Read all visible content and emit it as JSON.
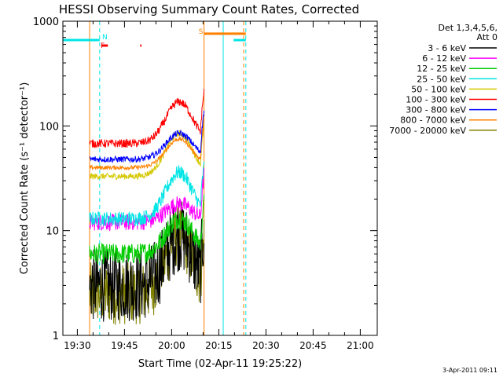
{
  "chart_data": {
    "type": "line",
    "title": "HESSI Observing Summary Count Rates, Corrected",
    "xlabel": "Start Time (02-Apr-11 19:25:22)",
    "ylabel": "Corrected Count Rate (s⁻¹ detector⁻¹)",
    "ylog": true,
    "ylim": [
      1,
      1000
    ],
    "xlim_minutes": [
      0,
      100
    ],
    "x_ticks": [
      {
        "label": "19:30",
        "t": 4.6
      },
      {
        "label": "19:45",
        "t": 19.6
      },
      {
        "label": "20:00",
        "t": 34.6
      },
      {
        "label": "20:15",
        "t": 49.6
      },
      {
        "label": "20:30",
        "t": 64.6
      },
      {
        "label": "20:45",
        "t": 79.6
      },
      {
        "label": "21:00",
        "t": 94.6
      }
    ],
    "y_ticks": [
      {
        "label": "1",
        "v": 1
      },
      {
        "label": "10",
        "v": 10
      },
      {
        "label": "100",
        "v": 100
      },
      {
        "label": "1000",
        "v": 1000
      }
    ],
    "legend": {
      "header1": "Det 1,3,4,5,6,",
      "header2": "Att 0",
      "placement": "right"
    },
    "series": [
      {
        "name": "3 - 6 keV",
        "color": "#000000",
        "base": 3.0,
        "peak": 9,
        "noise": 0.35
      },
      {
        "name": "6 - 12 keV",
        "color": "#ff00ff",
        "base": 12,
        "peak": 18,
        "noise": 0.08
      },
      {
        "name": "12 - 25 keV",
        "color": "#00cc00",
        "base": 6,
        "peak": 13,
        "noise": 0.1
      },
      {
        "name": "25 - 50 keV",
        "color": "#00e5e5",
        "base": 13,
        "peak": 36,
        "noise": 0.07
      },
      {
        "name": "50 - 100 keV",
        "color": "#d4c800",
        "base": 33,
        "peak": 85,
        "noise": 0.03
      },
      {
        "name": "100 - 300 keV",
        "color": "#ff0000",
        "base": 68,
        "peak": 170,
        "noise": 0.04
      },
      {
        "name": "300 - 800 keV",
        "color": "#0000ff",
        "base": 48,
        "peak": 85,
        "noise": 0.03
      },
      {
        "name": "800 - 7000 keV",
        "color": "#ff8000",
        "base": 40,
        "peak": 75,
        "noise": 0.02
      },
      {
        "name": "7000 - 20000 keV",
        "color": "#808000",
        "base": 2.5,
        "peak": 9,
        "noise": 0.3
      }
    ],
    "data_window_minutes": [
      8.5,
      44.9
    ],
    "annotations": [
      {
        "label": "N",
        "t": 12.0,
        "color": "#00e5e5"
      },
      {
        "label": "F",
        "t": 11.5,
        "color": "#ff0000"
      },
      {
        "label": "S",
        "t": 44.7,
        "color": "#ff8000"
      }
    ],
    "saa_bars": [
      {
        "t0": 0,
        "t1": 11.7,
        "v": 660,
        "color": "#00e5e5"
      },
      {
        "t0": 44.9,
        "t1": 58.2,
        "v": 760,
        "color": "#ff8000"
      },
      {
        "t0": 54.3,
        "t1": 58.2,
        "v": 660,
        "color": "#00e5e5"
      }
    ],
    "flare_bars": [
      {
        "t0": 12.3,
        "t1": 14.3
      },
      {
        "t0": 24.6,
        "t1": 25.0
      }
    ],
    "vlines": [
      {
        "t": 11.7,
        "color": "#00e5e5",
        "dashed": true
      },
      {
        "t": 8.5,
        "color": "#ff8000",
        "dashed": false
      },
      {
        "t": 44.9,
        "color": "#ff8000",
        "dashed": false
      },
      {
        "t": 51.0,
        "color": "#00e5e5",
        "dashed": false
      },
      {
        "t": 57.5,
        "color": "#ff8000",
        "dashed": true
      },
      {
        "t": 58.2,
        "color": "#00e5e5",
        "dashed": true
      }
    ]
  },
  "footer_date": "3-Apr-2011 09:11"
}
